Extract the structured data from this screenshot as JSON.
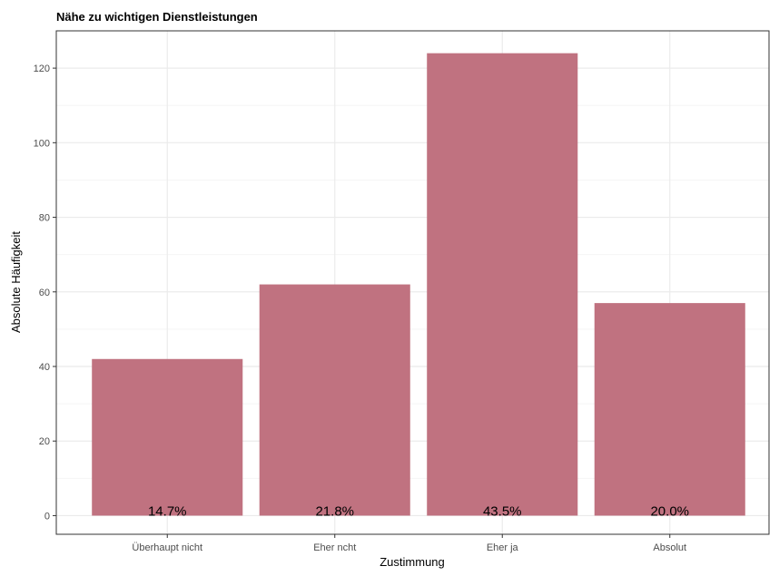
{
  "chart_data": {
    "type": "bar",
    "title": "Nähe zu wichtigen Dienstleistungen",
    "xlabel": "Zustimmung",
    "ylabel": "Absolute Häufigkeit",
    "categories": [
      "Überhaupt nicht",
      "Eher ncht",
      "Eher ja",
      "Absolut"
    ],
    "values": [
      42,
      62,
      124,
      57
    ],
    "data_labels": [
      "14.7%",
      "21.8%",
      "43.5%",
      "20.0%"
    ],
    "ylim": [
      -5,
      130
    ],
    "yticks": [
      0,
      20,
      40,
      60,
      80,
      100,
      120
    ],
    "grid": true,
    "legend": "none",
    "colors": {
      "bar": "#c07280",
      "grid_major": "#ebebeb",
      "grid_minor": "#f5f5f5",
      "panel_border": "#333333",
      "text": "#4d4d4d"
    }
  }
}
